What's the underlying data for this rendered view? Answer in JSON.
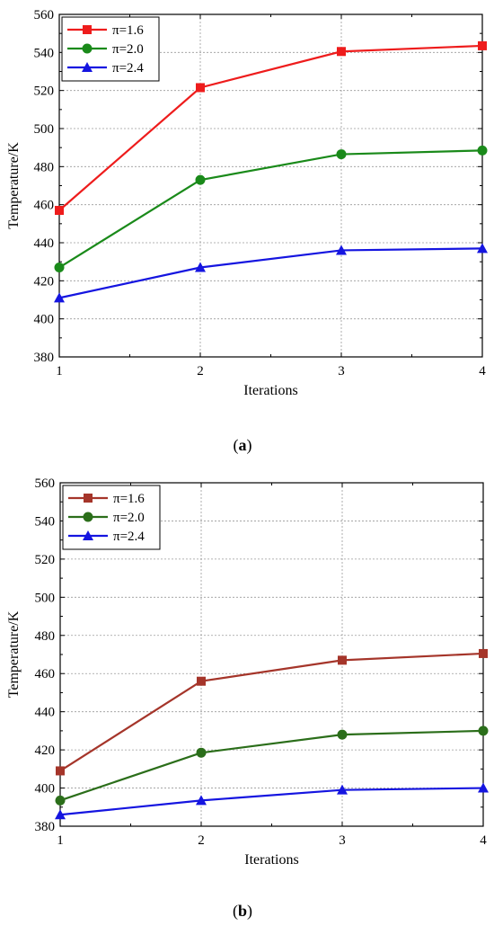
{
  "chart_data": [
    {
      "type": "line",
      "panel_label": "a",
      "x": [
        1,
        2,
        3,
        4
      ],
      "xlim": [
        1,
        4
      ],
      "ylim": [
        380,
        560
      ],
      "xticks": [
        "1",
        "2",
        "3",
        "4"
      ],
      "yticks": [
        "380",
        "400",
        "420",
        "440",
        "460",
        "480",
        "500",
        "520",
        "540",
        "560"
      ],
      "xlabel": "Iterations",
      "ylabel": "Temperature/K",
      "grid": true,
      "legend_position": "top-left",
      "series": [
        {
          "name": "π=1.6",
          "color": "#ee1c1c",
          "marker": "square",
          "values": [
            457,
            521.5,
            540.5,
            543.5
          ]
        },
        {
          "name": "π=2.0",
          "color": "#1a8a1a",
          "marker": "circle",
          "values": [
            427,
            473,
            486.5,
            488.5
          ]
        },
        {
          "name": "π=2.4",
          "color": "#1515e0",
          "marker": "triangle",
          "values": [
            411,
            427,
            436,
            437
          ]
        }
      ]
    },
    {
      "type": "line",
      "panel_label": "b",
      "x": [
        1,
        2,
        3,
        4
      ],
      "xlim": [
        1,
        4
      ],
      "ylim": [
        380,
        560
      ],
      "xticks": [
        "1",
        "2",
        "3",
        "4"
      ],
      "yticks": [
        "380",
        "400",
        "420",
        "440",
        "460",
        "480",
        "500",
        "520",
        "540",
        "560"
      ],
      "xlabel": "Iterations",
      "ylabel": "Temperature/K",
      "grid": true,
      "legend_position": "top-left",
      "series": [
        {
          "name": "π=1.6",
          "color": "#a5352a",
          "marker": "square",
          "values": [
            409,
            456,
            467,
            470.5
          ]
        },
        {
          "name": "π=2.0",
          "color": "#2b6e1a",
          "marker": "circle",
          "values": [
            393.5,
            418.5,
            428,
            430
          ]
        },
        {
          "name": "π=2.4",
          "color": "#1515e0",
          "marker": "triangle",
          "values": [
            386,
            393.5,
            399,
            400
          ]
        }
      ]
    }
  ]
}
